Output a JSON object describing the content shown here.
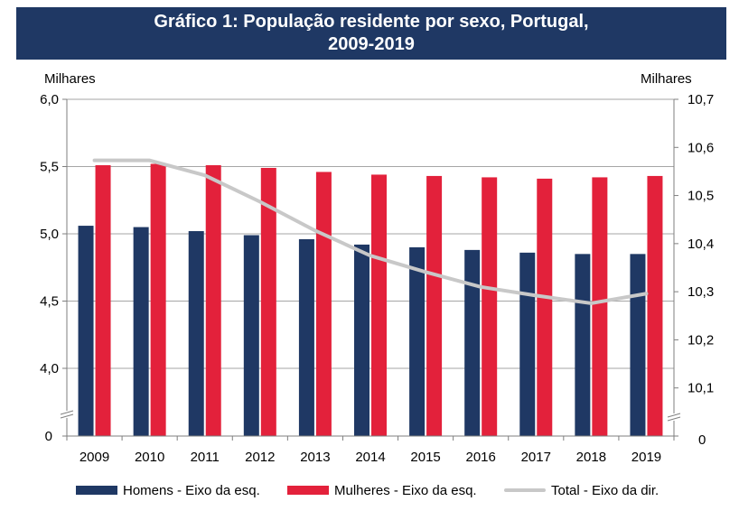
{
  "title_line1": "Gráfico 1: População residente por sexo, Portugal,",
  "title_line2": "2009-2019",
  "left_unit": "Milhares",
  "right_unit": "Milhares",
  "colors": {
    "homens": "#1f3864",
    "mulheres": "#e3213b",
    "total": "#c8c8c8",
    "title_bg": "#1f3864"
  },
  "chart_data": {
    "type": "bar",
    "title": "Gráfico 1: População residente por sexo, Portugal, 2009-2019",
    "categories": [
      "2009",
      "2010",
      "2011",
      "2012",
      "2013",
      "2014",
      "2015",
      "2016",
      "2017",
      "2018",
      "2019"
    ],
    "series": [
      {
        "name": "Homens - Eixo da esq.",
        "type": "bar",
        "axis": "left",
        "values": [
          5.06,
          5.05,
          5.02,
          4.99,
          4.96,
          4.92,
          4.9,
          4.88,
          4.86,
          4.85,
          4.85
        ]
      },
      {
        "name": "Mulheres - Eixo da esq.",
        "type": "bar",
        "axis": "left",
        "values": [
          5.51,
          5.52,
          5.51,
          5.49,
          5.46,
          5.44,
          5.43,
          5.42,
          5.41,
          5.42,
          5.43
        ]
      },
      {
        "name": "Total - Eixo da dir.",
        "type": "line",
        "axis": "right",
        "values": [
          10.573,
          10.573,
          10.542,
          10.487,
          10.427,
          10.375,
          10.341,
          10.31,
          10.292,
          10.276,
          10.296
        ]
      }
    ],
    "left_axis": {
      "label": "Milhares",
      "ylim": [
        3.5,
        6.0
      ],
      "ticks": [
        {
          "v": 4.0,
          "label": "4,0"
        },
        {
          "v": 4.5,
          "label": "4,5"
        },
        {
          "v": 5.0,
          "label": "5,0"
        },
        {
          "v": 5.5,
          "label": "5,5"
        },
        {
          "v": 6.0,
          "label": "6,0"
        }
      ],
      "zero_label": "0",
      "axis_break": true
    },
    "right_axis": {
      "label": "Milhares",
      "ylim": [
        10.0,
        10.7
      ],
      "ticks": [
        {
          "v": 10.1,
          "label": "10,1"
        },
        {
          "v": 10.2,
          "label": "10,2"
        },
        {
          "v": 10.3,
          "label": "10,3"
        },
        {
          "v": 10.4,
          "label": "10,4"
        },
        {
          "v": 10.5,
          "label": "10,5"
        },
        {
          "v": 10.6,
          "label": "10,6"
        },
        {
          "v": 10.7,
          "label": "10,7"
        }
      ],
      "zero_label": "0",
      "axis_break": true
    },
    "legend_position": "bottom",
    "grid": true
  }
}
